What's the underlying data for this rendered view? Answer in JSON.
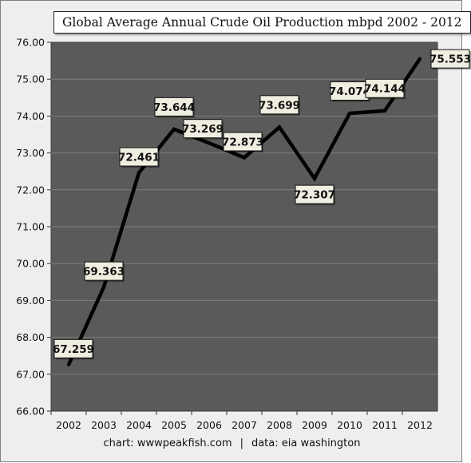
{
  "chart_data": {
    "type": "line",
    "title": "Global Average Annual Crude Oil Production mbpd 2002 - 2012",
    "categories": [
      "2002",
      "2003",
      "2004",
      "2005",
      "2006",
      "2007",
      "2008",
      "2009",
      "2010",
      "2011",
      "2012"
    ],
    "series": [
      {
        "values": [
          67.259,
          69.363,
          72.461,
          73.644,
          73.269,
          72.873,
          73.699,
          72.307,
          74.074,
          74.144,
          75.553
        ],
        "data_labels": [
          "67.259",
          "69.363",
          "72.461",
          "73.644",
          "73.269",
          "72.873",
          "73.699",
          "72.307",
          "74.074",
          "74.144",
          "75.553"
        ]
      }
    ],
    "y_tick_labels": [
      "66.00",
      "67.00",
      "68.00",
      "69.00",
      "70.00",
      "71.00",
      "72.00",
      "73.00",
      "74.00",
      "75.00",
      "76.00"
    ],
    "ylim": [
      66,
      76
    ],
    "grid": true,
    "legend": "none",
    "colors": {
      "plot_background": "#5a5a5a",
      "grid": "#7e7e7e",
      "line": "#000000",
      "label_box": "#f0eee0",
      "chart_background": "#eeeeee"
    }
  },
  "footer": {
    "credit": "chart:  wwwpeakfish.com",
    "separator": "|",
    "source": "data: eia washington"
  }
}
